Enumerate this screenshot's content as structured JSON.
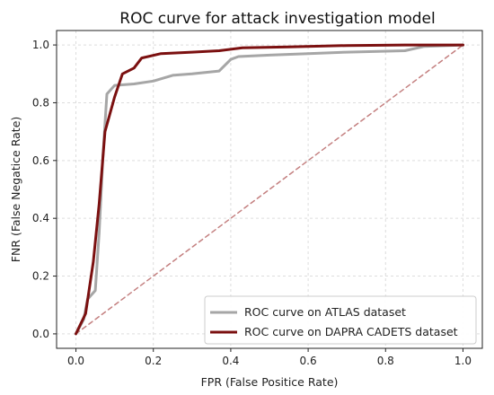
{
  "chart_data": {
    "type": "line",
    "title": "ROC curve for attack investigation model",
    "xlabel": "FPR (False Positice Rate)",
    "ylabel": "FNR (False Negatice Rate)",
    "xlim": [
      0.0,
      1.0
    ],
    "ylim": [
      0.0,
      1.0
    ],
    "xticks": [
      "0.0",
      "0.2",
      "0.4",
      "0.6",
      "0.8",
      "1.0"
    ],
    "yticks": [
      "0.0",
      "0.2",
      "0.4",
      "0.6",
      "0.8",
      "1.0"
    ],
    "grid": true,
    "legend_position": "bottom-right",
    "series": [
      {
        "name": "ROC curve on ATLAS dataset",
        "color": "#a6a6a6",
        "points": [
          [
            0.0,
            0.0
          ],
          [
            0.02,
            0.05
          ],
          [
            0.03,
            0.12
          ],
          [
            0.05,
            0.15
          ],
          [
            0.06,
            0.35
          ],
          [
            0.07,
            0.62
          ],
          [
            0.08,
            0.83
          ],
          [
            0.1,
            0.86
          ],
          [
            0.15,
            0.865
          ],
          [
            0.2,
            0.875
          ],
          [
            0.25,
            0.895
          ],
          [
            0.3,
            0.9
          ],
          [
            0.37,
            0.91
          ],
          [
            0.4,
            0.95
          ],
          [
            0.42,
            0.96
          ],
          [
            0.5,
            0.965
          ],
          [
            0.6,
            0.97
          ],
          [
            0.7,
            0.975
          ],
          [
            0.85,
            0.98
          ],
          [
            0.9,
            0.995
          ],
          [
            1.0,
            1.0
          ]
        ]
      },
      {
        "name": "ROC curve on DAPRA CADETS dataset",
        "color": "#7b1010",
        "points": [
          [
            0.0,
            0.0
          ],
          [
            0.025,
            0.07
          ],
          [
            0.035,
            0.16
          ],
          [
            0.045,
            0.25
          ],
          [
            0.06,
            0.45
          ],
          [
            0.075,
            0.7
          ],
          [
            0.1,
            0.82
          ],
          [
            0.12,
            0.9
          ],
          [
            0.15,
            0.92
          ],
          [
            0.17,
            0.955
          ],
          [
            0.22,
            0.97
          ],
          [
            0.3,
            0.975
          ],
          [
            0.37,
            0.98
          ],
          [
            0.43,
            0.99
          ],
          [
            0.55,
            0.993
          ],
          [
            0.7,
            0.998
          ],
          [
            0.85,
            1.0
          ],
          [
            1.0,
            1.0
          ]
        ]
      },
      {
        "name": "",
        "color": "#c48080",
        "dashed": true,
        "points": [
          [
            0.0,
            0.0
          ],
          [
            1.0,
            1.0
          ]
        ]
      }
    ]
  }
}
